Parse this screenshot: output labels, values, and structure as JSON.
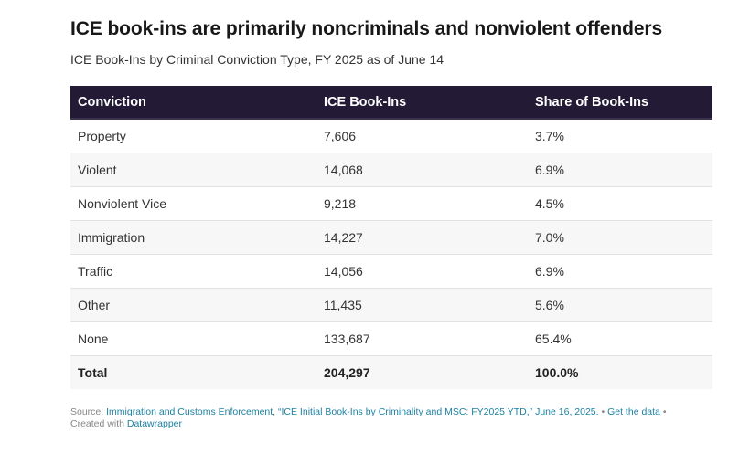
{
  "title": "ICE book-ins are primarily noncriminals and nonviolent offenders",
  "subtitle": "ICE Book-Ins by Criminal Conviction Type, FY 2025 as of June 14",
  "chart_data": {
    "type": "table",
    "columns": [
      "Conviction",
      "ICE Book-Ins",
      "Share of Book-Ins"
    ],
    "rows": [
      [
        "Property",
        "7,606",
        "3.7%"
      ],
      [
        "Violent",
        "14,068",
        "6.9%"
      ],
      [
        "Nonviolent Vice",
        "9,218",
        "4.5%"
      ],
      [
        "Immigration",
        "14,227",
        "7.0%"
      ],
      [
        "Traffic",
        "14,056",
        "6.9%"
      ],
      [
        "Other",
        "11,435",
        "5.6%"
      ],
      [
        "None",
        "133,687",
        "65.4%"
      ]
    ],
    "total": [
      "Total",
      "204,297",
      "100.0%"
    ],
    "colors": {
      "header_bg": "#231b36",
      "header_text": "#ffffff",
      "stripe": "#f7f7f7",
      "link": "#1d81a2"
    }
  },
  "footer": {
    "source_label": "Source:",
    "source_text": "Immigration and Customs Enforcement, “ICE Initial Book-Ins by Criminality and MSC: FY2025 YTD,” June 16, 2025.",
    "separator": "•",
    "get_data_label": "Get the data",
    "created_with_label": "Created with",
    "tool_name": "Datawrapper"
  }
}
